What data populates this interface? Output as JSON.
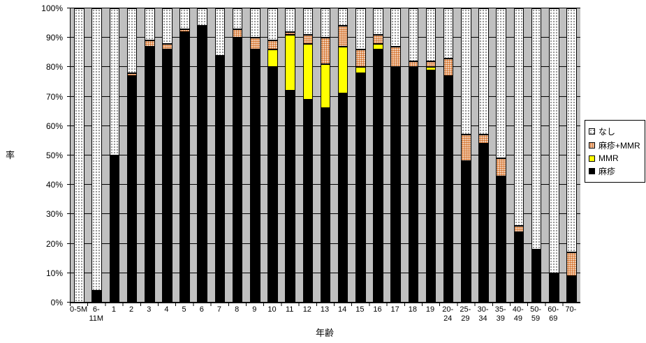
{
  "chart_data": {
    "type": "bar",
    "subtype": "stacked-100-percent",
    "title": "",
    "xlabel": "年齢",
    "ylabel": "率",
    "ylim": [
      0,
      100
    ],
    "ytick_format": "percent",
    "yticks_percent": [
      0,
      10,
      20,
      30,
      40,
      50,
      60,
      70,
      80,
      90,
      100
    ],
    "grid": true,
    "plot_bg": "#C0C0C0",
    "legend_position": "right",
    "categories": [
      "0-5M",
      "6-11M",
      "1",
      "2",
      "3",
      "4",
      "5",
      "6",
      "7",
      "8",
      "9",
      "10",
      "11",
      "12",
      "13",
      "14",
      "15",
      "16",
      "17",
      "18",
      "19",
      "20-24",
      "25-29",
      "30-34",
      "35-39",
      "40-49",
      "50-59",
      "60-69",
      "70-"
    ],
    "tick_labels": [
      "0-5M",
      "6-\n11M",
      "1",
      "2",
      "3",
      "4",
      "5",
      "6",
      "7",
      "8",
      "9",
      "10",
      "11",
      "12",
      "13",
      "14",
      "15",
      "16",
      "17",
      "18",
      "19",
      "20-\n24",
      "25-\n29",
      "30-\n34",
      "35-\n39",
      "40-\n49",
      "50-\n59",
      "60-\n69",
      "70-"
    ],
    "series": [
      {
        "key": "measles",
        "name": "麻疹",
        "color": "#000000",
        "pattern": "solid",
        "values": [
          0,
          4,
          50,
          77,
          87,
          86,
          92,
          94,
          84,
          90,
          86,
          80,
          72,
          69,
          66,
          71,
          78,
          86,
          80,
          80,
          79,
          77,
          48,
          54,
          43,
          24,
          18,
          10,
          9
        ]
      },
      {
        "key": "mmr",
        "name": "MMR",
        "color": "#FFFF00",
        "pattern": "solid",
        "values": [
          0,
          0,
          0,
          0,
          0,
          0,
          0,
          0,
          0,
          0,
          0,
          6,
          19,
          19,
          15,
          16,
          2,
          2,
          0,
          0,
          1,
          0,
          0,
          0,
          0,
          0,
          0,
          0,
          0
        ]
      },
      {
        "key": "mmrmix",
        "name": "麻疹+MMR",
        "color": "#D2691E",
        "pattern": "dots-on-white",
        "values": [
          0,
          0,
          0,
          1,
          2,
          2,
          1,
          0,
          0,
          3,
          4,
          3,
          1,
          3,
          9,
          7,
          6,
          3,
          7,
          2,
          2,
          6,
          9,
          3,
          6,
          2,
          0,
          0,
          8
        ]
      },
      {
        "key": "none",
        "name": "なし",
        "color": "#FFFFFF",
        "pattern": "dots-on-white",
        "values": [
          100,
          96,
          50,
          22,
          11,
          12,
          7,
          6,
          16,
          7,
          10,
          11,
          8,
          9,
          10,
          6,
          14,
          9,
          13,
          18,
          18,
          17,
          43,
          43,
          51,
          74,
          82,
          90,
          83
        ]
      }
    ],
    "legend": [
      {
        "key": "none",
        "label": "なし"
      },
      {
        "key": "mmrmix",
        "label": "麻疹+MMR"
      },
      {
        "key": "mmr",
        "label": "MMR"
      },
      {
        "key": "measles",
        "label": "麻疹"
      }
    ]
  }
}
